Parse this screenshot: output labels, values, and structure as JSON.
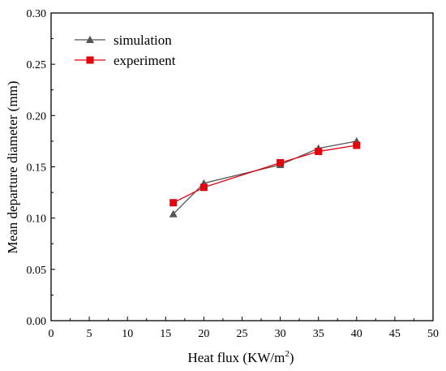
{
  "chart_data": {
    "type": "line",
    "xlabel": "Heat flux (KW/m",
    "xlabel_superscript": "2",
    "xlabel_suffix": ")",
    "ylabel": "Mean departure diameter (mm)",
    "xlim": [
      0,
      50
    ],
    "ylim": [
      0.0,
      0.3
    ],
    "xticks": [
      "0",
      "5",
      "10",
      "15",
      "20",
      "25",
      "30",
      "35",
      "40",
      "45",
      "50"
    ],
    "yticks": [
      "0.00",
      "0.05",
      "0.10",
      "0.15",
      "0.20",
      "0.25",
      "0.30"
    ],
    "grid": false,
    "legend_position": "top-left",
    "series": [
      {
        "name": "simulation",
        "color": "#555555",
        "marker": "triangle",
        "x": [
          16,
          20,
          30,
          35,
          40
        ],
        "y": [
          0.104,
          0.134,
          0.152,
          0.168,
          0.175
        ]
      },
      {
        "name": "experiment",
        "color": "#e8000b",
        "marker": "square",
        "x": [
          16,
          20,
          30,
          35,
          40
        ],
        "y": [
          0.115,
          0.13,
          0.154,
          0.165,
          0.171
        ]
      }
    ]
  }
}
